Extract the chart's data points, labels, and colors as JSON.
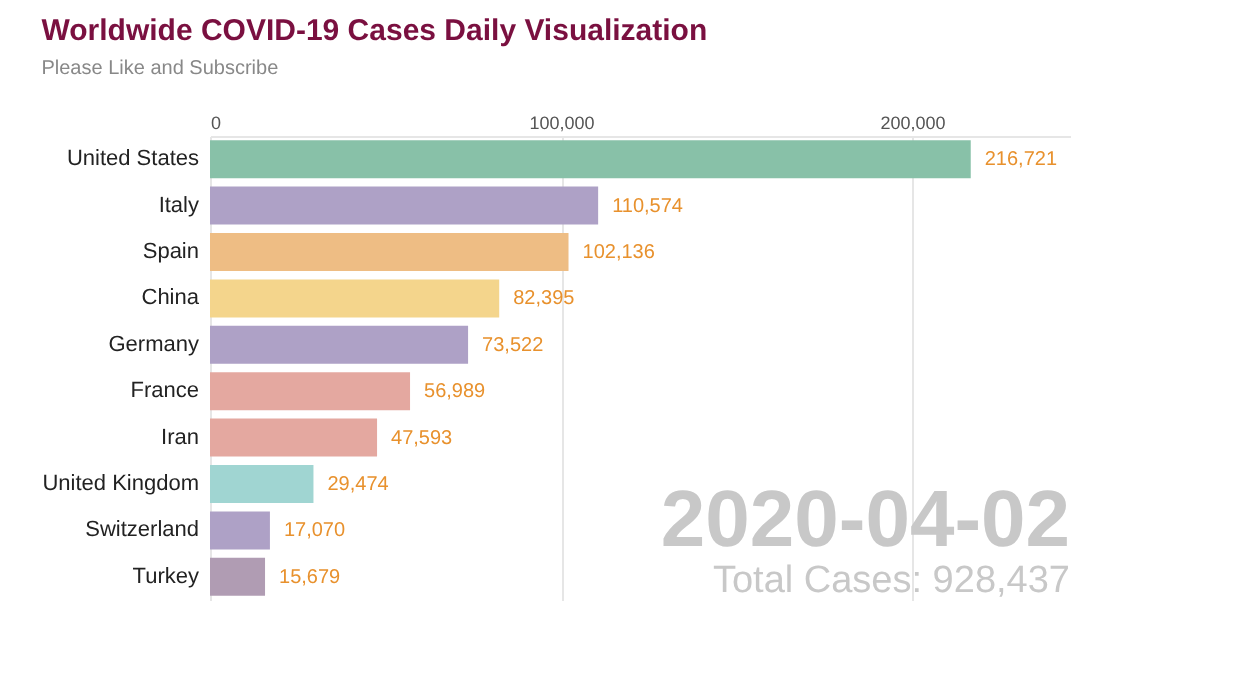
{
  "chart_data": {
    "type": "bar",
    "orientation": "horizontal",
    "title": "Worldwide COVID-19 Cases Daily Visualization",
    "subtitle": "Please Like and Subscribe",
    "categories": [
      "United States",
      "Italy",
      "Spain",
      "China",
      "Germany",
      "France",
      "Iran",
      "United Kingdom",
      "Switzerland",
      "Turkey"
    ],
    "values": [
      216721,
      110574,
      102136,
      82395,
      73522,
      56989,
      47593,
      29474,
      17070,
      15679
    ],
    "colors": [
      "#88c1a8",
      "#aea1c6",
      "#eebd84",
      "#f4d58c",
      "#aea1c6",
      "#e4a8a0",
      "#e4a8a0",
      "#a0d5d2",
      "#aea1c6",
      "#b09cb3"
    ],
    "value_labels": [
      "216,721",
      "110,574",
      "102,136",
      "82,395",
      "73,522",
      "56,989",
      "47,593",
      "29,474",
      "17,070",
      "15,679"
    ],
    "xlim": [
      0,
      245000
    ],
    "xticks": [
      0,
      {
        "value": 100000,
        "label": "100,000"
      },
      {
        "value": 200000,
        "label": "200,000"
      }
    ],
    "grid": "x",
    "annotations": [
      "2020-04-02",
      "Total Cases: 928,437"
    ]
  }
}
